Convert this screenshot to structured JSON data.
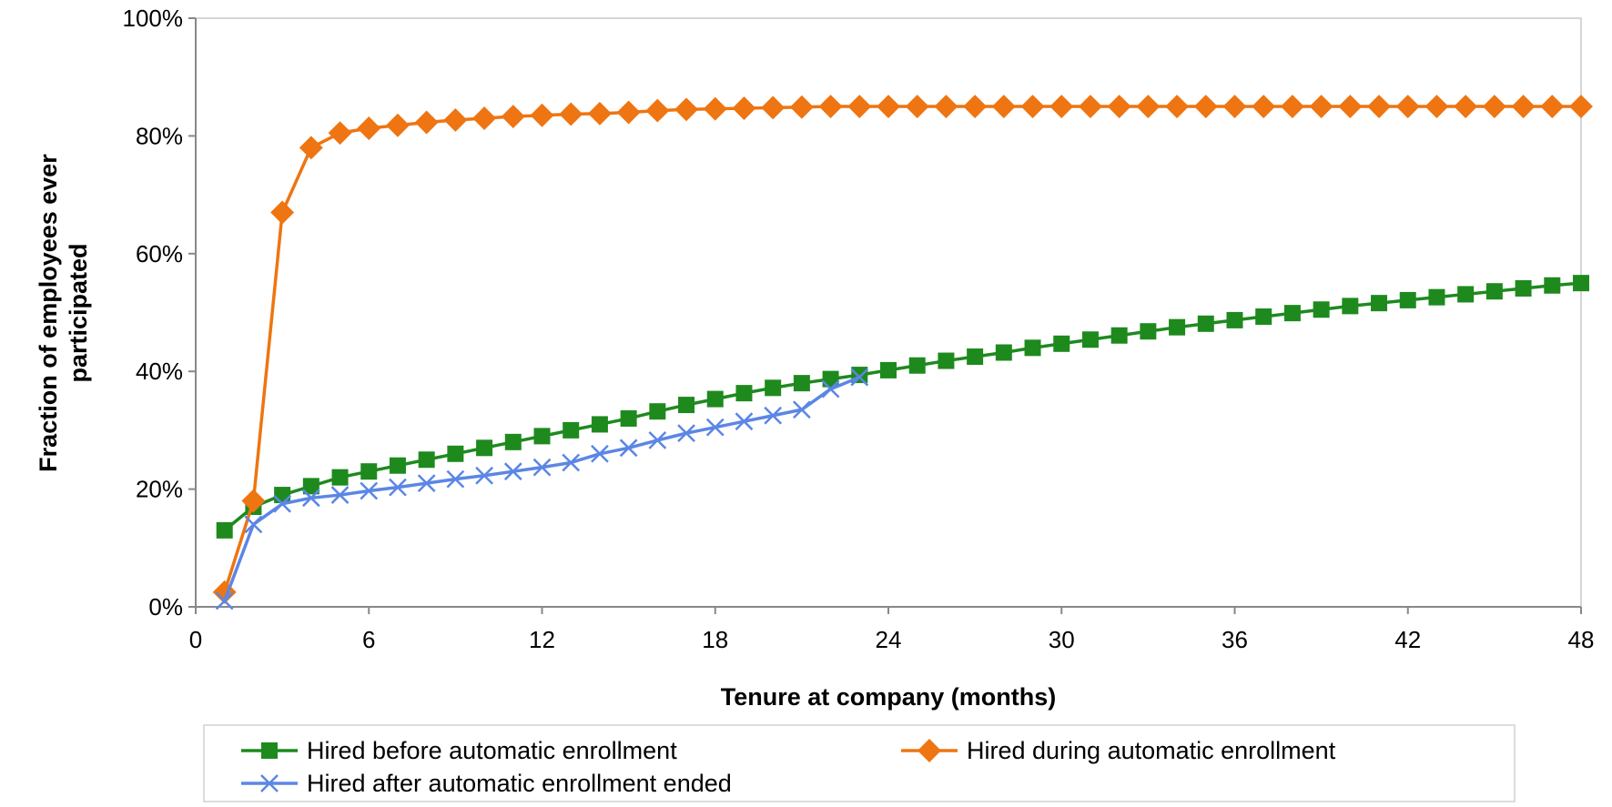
{
  "chart_data": {
    "type": "line",
    "xlabel": "Tenure at company (months)",
    "ylabel": "Fraction of employees ever participated",
    "xlim": [
      0,
      48
    ],
    "ylim": [
      0,
      100
    ],
    "x_ticks": [
      "0",
      "6",
      "12",
      "18",
      "24",
      "30",
      "36",
      "42",
      "48"
    ],
    "y_ticks": [
      "0%",
      "20%",
      "40%",
      "60%",
      "80%",
      "100%"
    ],
    "grid": false,
    "legend_position": "bottom",
    "series": [
      {
        "name": "Hired before automatic enrollment",
        "color": "#1e8a1e",
        "marker": "square",
        "x": [
          1,
          2,
          3,
          4,
          5,
          6,
          7,
          8,
          9,
          10,
          11,
          12,
          13,
          14,
          15,
          16,
          17,
          18,
          19,
          20,
          21,
          22,
          23,
          24,
          25,
          26,
          27,
          28,
          29,
          30,
          31,
          32,
          33,
          34,
          35,
          36,
          37,
          38,
          39,
          40,
          41,
          42,
          43,
          44,
          45,
          46,
          47,
          48
        ],
        "y": [
          13,
          17,
          19,
          20.5,
          22,
          23,
          24,
          25,
          26,
          27,
          28,
          29,
          30,
          31,
          32,
          33.2,
          34.3,
          35.3,
          36.3,
          37.2,
          38,
          38.7,
          39.4,
          40.2,
          41,
          41.8,
          42.5,
          43.2,
          44,
          44.7,
          45.4,
          46.1,
          46.8,
          47.5,
          48.1,
          48.7,
          49.3,
          49.9,
          50.5,
          51.1,
          51.6,
          52.1,
          52.6,
          53.1,
          53.6,
          54.1,
          54.6,
          55
        ]
      },
      {
        "name": "Hired during automatic enrollment",
        "color": "#ee7511",
        "marker": "diamond",
        "x": [
          1,
          2,
          3,
          4,
          5,
          6,
          7,
          8,
          9,
          10,
          11,
          12,
          13,
          14,
          15,
          16,
          17,
          18,
          19,
          20,
          21,
          22,
          23,
          24,
          25,
          26,
          27,
          28,
          29,
          30,
          31,
          32,
          33,
          34,
          35,
          36,
          37,
          38,
          39,
          40,
          41,
          42,
          43,
          44,
          45,
          46,
          47,
          48
        ],
        "y": [
          2.5,
          18,
          67,
          78,
          80.5,
          81.3,
          81.8,
          82.3,
          82.7,
          83,
          83.3,
          83.5,
          83.7,
          83.8,
          84,
          84.3,
          84.5,
          84.6,
          84.7,
          84.8,
          84.9,
          85,
          85,
          85,
          85,
          85,
          85,
          85,
          85,
          85,
          85,
          85,
          85,
          85,
          85,
          85,
          85,
          85,
          85,
          85,
          85,
          85,
          85,
          85,
          85,
          85,
          85,
          85
        ]
      },
      {
        "name": "Hired after automatic enrollment ended",
        "color": "#5b86e5",
        "marker": "x",
        "x": [
          1,
          2,
          3,
          4,
          5,
          6,
          7,
          8,
          9,
          10,
          11,
          12,
          13,
          14,
          15,
          16,
          17,
          18,
          19,
          20,
          21,
          22,
          23
        ],
        "y": [
          1,
          14,
          17.5,
          18.5,
          19,
          19.7,
          20.3,
          21,
          21.7,
          22.3,
          23,
          23.7,
          24.5,
          26,
          27,
          28.3,
          29.5,
          30.5,
          31.5,
          32.5,
          33.5,
          37,
          39
        ]
      }
    ]
  }
}
